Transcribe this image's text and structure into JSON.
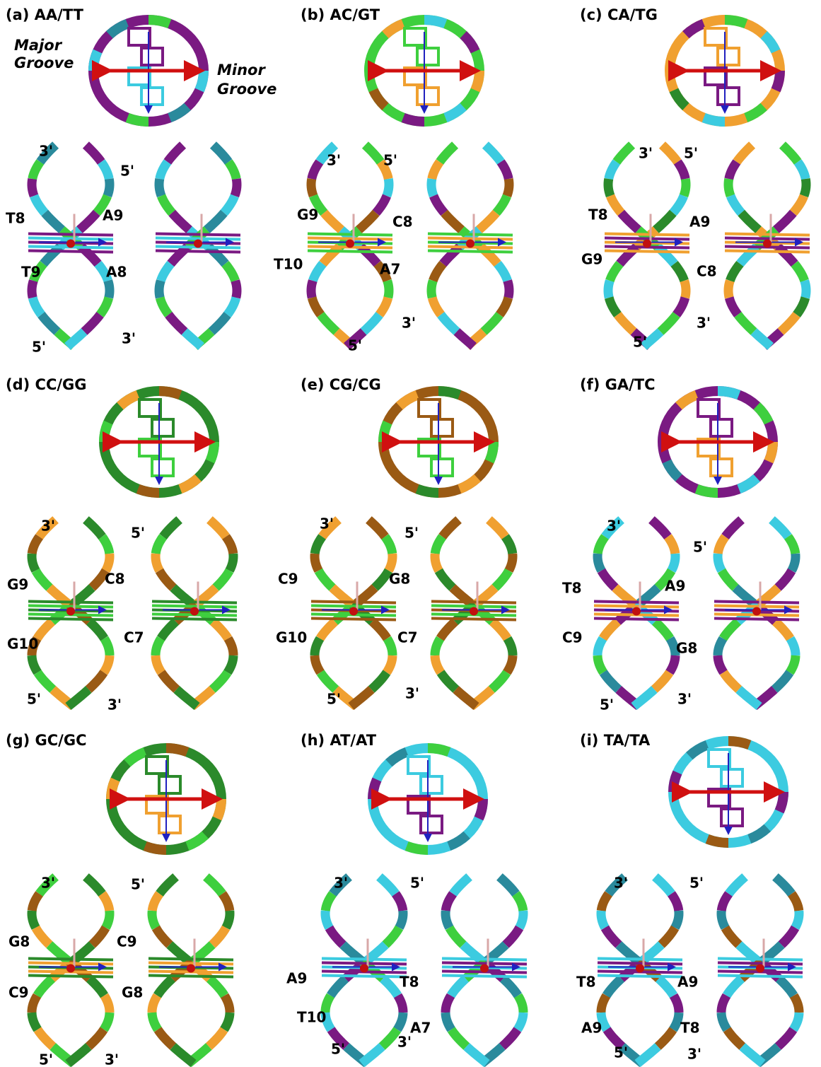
{
  "panels": [
    {
      "title": "(a) AA/TT",
      "groove_labels": [
        "Major",
        "Groove",
        "Minor",
        "Groove"
      ],
      "labels": [
        "3'",
        "5'",
        "T8",
        "A9",
        "T9",
        "A8",
        "5'",
        "3'"
      ]
    },
    {
      "title": "(b) AC/GT",
      "labels": [
        "3'",
        "5'",
        "G9",
        "C8",
        "T10",
        "A7",
        "3'",
        "5'"
      ]
    },
    {
      "title": "(c) CA/TG",
      "labels": [
        "3'",
        "5'",
        "T8",
        "A9",
        "G9",
        "C8",
        "3'",
        "5'"
      ]
    },
    {
      "title": "(d) CC/GG",
      "labels": [
        "3'",
        "5'",
        "G9",
        "C8",
        "G10",
        "C7",
        "5'",
        "3'"
      ]
    },
    {
      "title": "(e) CG/CG",
      "labels": [
        "3'",
        "5'",
        "C9",
        "G8",
        "G10",
        "C7",
        "5'",
        "3'"
      ]
    },
    {
      "title": "(f) GA/TC",
      "labels": [
        "3'",
        "5'",
        "T8",
        "A9",
        "C9",
        "G8",
        "5'",
        "3'"
      ]
    },
    {
      "title": "(g) GC/GC",
      "labels": [
        "3'",
        "5'",
        "G8",
        "C9",
        "C9",
        "G8",
        "5'",
        "3'"
      ]
    },
    {
      "title": "(h) AT/AT",
      "labels": [
        "3'",
        "5'",
        "A9",
        "T8",
        "T10",
        "A7",
        "5'",
        "3'"
      ]
    },
    {
      "title": "(i) TA/TA",
      "labels": [
        "3'",
        "5'",
        "T8",
        "A9",
        "A9",
        "T8",
        "5'",
        "3'"
      ]
    }
  ]
}
